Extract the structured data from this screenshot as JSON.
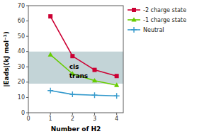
{
  "chart_data": {
    "type": "line",
    "xlabel": "Number of H2",
    "ylabel": "|Eads|(kJ  mol⁻¹)",
    "x": [
      1,
      2,
      3,
      4
    ],
    "series": [
      {
        "name": "-2 charge state",
        "color": "#cc0033",
        "marker": "square",
        "values": [
          63,
          37,
          28,
          24
        ]
      },
      {
        "name": "-1 charge state",
        "color": "#66cc00",
        "marker": "triangle",
        "values": [
          38,
          25.5,
          21,
          18
        ]
      },
      {
        "name": "Neutral",
        "color": "#3399cc",
        "marker": "plus",
        "values": [
          14.5,
          12,
          11.5,
          11
        ]
      }
    ],
    "shade": {
      "ymin": 19,
      "ymax": 40,
      "color": "#b8cdd0"
    },
    "annotations": [
      {
        "text": "cis",
        "x": 1.85,
        "y": 30
      },
      {
        "text": "trans",
        "x": 1.85,
        "y": 24
      }
    ],
    "xlim": [
      0,
      4.3
    ],
    "ylim": [
      0,
      70
    ],
    "xticks": [
      0,
      1,
      2,
      3,
      4
    ],
    "yticks": [
      0,
      10,
      20,
      30,
      40,
      50,
      60,
      70
    ],
    "grid": false,
    "legend": "right"
  }
}
